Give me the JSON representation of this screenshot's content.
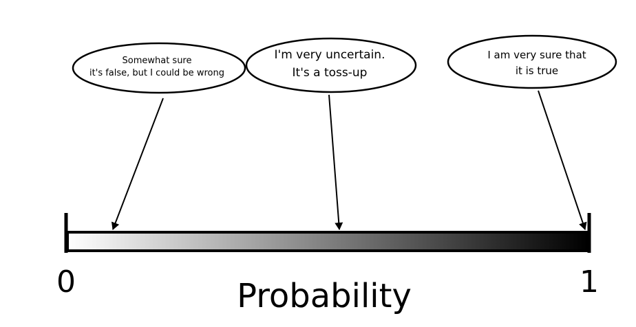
{
  "axis": {
    "label": "Probability",
    "min_label": "0",
    "max_label": "1",
    "range": [
      0,
      1
    ],
    "gradient": {
      "start_color": "#ffffff",
      "end_color": "#000000"
    }
  },
  "bubbles": [
    {
      "lines": [
        "Somewhat sure",
        "it's false, but I could be wrong"
      ],
      "probability": 0.09
    },
    {
      "lines": [
        "I'm very uncertain.",
        "It's a toss-up"
      ],
      "probability": 0.52
    },
    {
      "lines": [
        "I am very sure that",
        "it is true"
      ],
      "probability": 0.99
    }
  ],
  "colors": {
    "stroke": "#000000",
    "background": "#ffffff"
  }
}
